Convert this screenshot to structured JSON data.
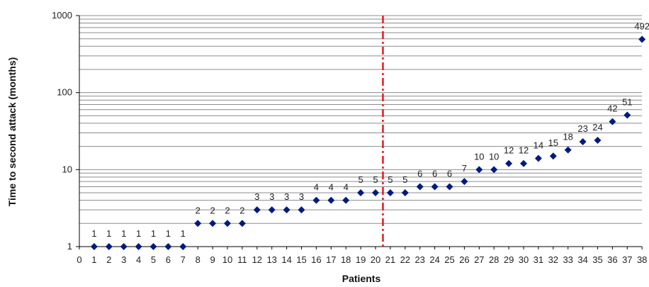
{
  "chart_data": {
    "type": "scatter",
    "xlabel": "Patients",
    "ylabel": "Time to second attack (months)",
    "y_scale": "log",
    "ylim": [
      1,
      1000
    ],
    "xlim": [
      0,
      38
    ],
    "y_tick_labels": [
      "1",
      "10",
      "100",
      "1000"
    ],
    "x_tick_labels": [
      "0",
      "1",
      "2",
      "3",
      "4",
      "5",
      "6",
      "7",
      "8",
      "9",
      "10",
      "11",
      "12",
      "13",
      "14",
      "15",
      "16",
      "17",
      "18",
      "19",
      "20",
      "21",
      "22",
      "23",
      "24",
      "25",
      "26",
      "27",
      "28",
      "29",
      "30",
      "31",
      "32",
      "33",
      "34",
      "35",
      "36",
      "37",
      "38"
    ],
    "x": [
      1,
      2,
      3,
      4,
      5,
      6,
      7,
      8,
      9,
      10,
      11,
      12,
      13,
      14,
      15,
      16,
      17,
      18,
      19,
      20,
      21,
      22,
      23,
      24,
      25,
      26,
      27,
      28,
      29,
      30,
      31,
      32,
      33,
      34,
      35,
      36,
      37,
      38
    ],
    "y": [
      1,
      1,
      1,
      1,
      1,
      1,
      1,
      2,
      2,
      2,
      2,
      3,
      3,
      3,
      3,
      4,
      4,
      4,
      5,
      5,
      5,
      5,
      6,
      6,
      6,
      7,
      10,
      10,
      12,
      12,
      14,
      15,
      18,
      23,
      24,
      42,
      51,
      492
    ],
    "data_labels": [
      "1",
      "1",
      "1",
      "1",
      "1",
      "1",
      "1",
      "2",
      "2",
      "2",
      "2",
      "3",
      "3",
      "3",
      "3",
      "4",
      "4",
      "4",
      "5",
      "5",
      "5",
      "5",
      "6",
      "6",
      "6",
      "7",
      "10",
      "10",
      "12",
      "12",
      "14",
      "15",
      "18",
      "23",
      "24",
      "42",
      "51",
      "492"
    ],
    "reference_line": {
      "x": 20.5,
      "style": "dash-dot",
      "color": "#e41a1c"
    },
    "grid": "horizontal minor and major",
    "legend": "none",
    "marker_color": "#001a80",
    "gridline_color": "#8c8c8c"
  }
}
